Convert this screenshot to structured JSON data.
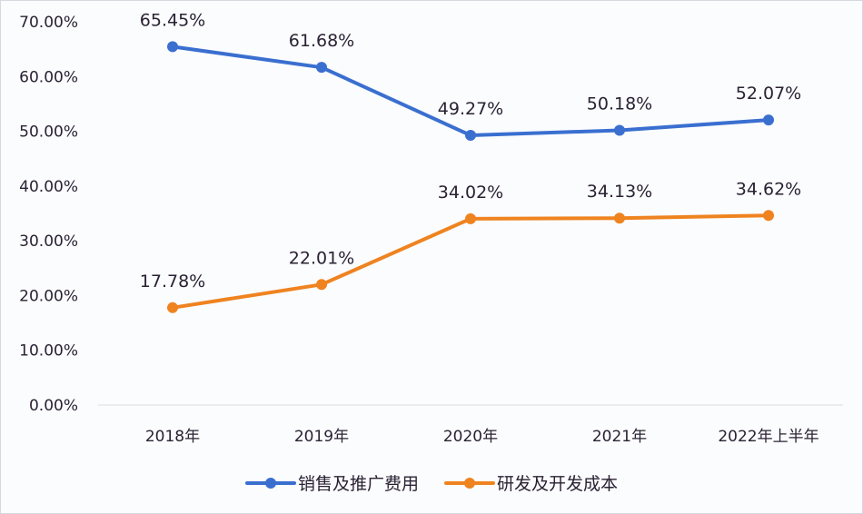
{
  "chart_data": {
    "type": "line",
    "title": "",
    "xlabel": "",
    "ylabel": "",
    "categories": [
      "2018年",
      "2019年",
      "2020年",
      "2021年",
      "2022年上半年"
    ],
    "series": [
      {
        "name": "销售及推广费用",
        "color": "#3a6fd0",
        "values": [
          65.45,
          61.68,
          49.27,
          50.18,
          52.07
        ],
        "labels": [
          "65.45%",
          "61.68%",
          "49.27%",
          "50.18%",
          "52.07%"
        ]
      },
      {
        "name": "研发及开发成本",
        "color": "#ef8320",
        "values": [
          17.78,
          22.01,
          34.02,
          34.13,
          34.62
        ],
        "labels": [
          "17.78%",
          "22.01%",
          "34.02%",
          "34.13%",
          "34.62%"
        ]
      }
    ],
    "ylim": [
      0,
      70
    ],
    "yticks": [
      "0.00%",
      "10.00%",
      "20.00%",
      "30.00%",
      "40.00%",
      "50.00%",
      "60.00%",
      "70.00%"
    ],
    "grid": false,
    "legend_position": "bottom"
  },
  "legend": {
    "items": [
      {
        "label": "销售及推广费用",
        "color": "#3a6fd0"
      },
      {
        "label": "研发及开发成本",
        "color": "#ef8320"
      }
    ]
  }
}
